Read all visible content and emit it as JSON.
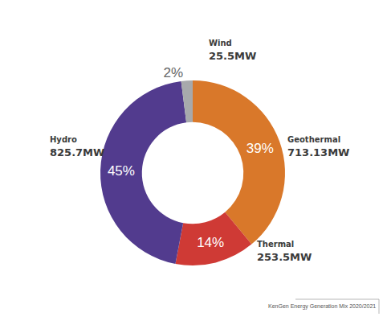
{
  "chart_data": {
    "type": "donut",
    "categories": [
      "Geothermal",
      "Thermal",
      "Hydro",
      "Wind"
    ],
    "values": [
      39,
      14,
      45,
      2
    ],
    "value_labels": [
      "39%",
      "14%",
      "45%",
      "2%"
    ],
    "data_labels": true,
    "colors": [
      "#d9782a",
      "#cf3a35",
      "#523b8e",
      "#a7a9ac"
    ],
    "capacity": [
      713.13,
      253.5,
      825.7,
      25.5
    ],
    "capacity_unit": "MW",
    "caption": "KenGen Energy Generation Mix 2020/2021"
  }
}
